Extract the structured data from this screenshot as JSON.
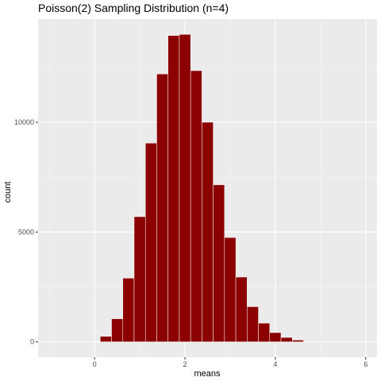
{
  "chart_data": {
    "type": "bar",
    "title": "Poisson(2) Sampling Distribution (n=4)",
    "xlabel": "means",
    "ylabel": "count",
    "xlim": [
      -1.25,
      6.25
    ],
    "ylim": [
      -700,
      14700
    ],
    "x_ticks": [
      0,
      2,
      4,
      6
    ],
    "y_ticks": [
      0,
      5000,
      10000
    ],
    "grid": true,
    "bar_width": 0.25,
    "bins": [
      {
        "x": 0.25,
        "count": 250
      },
      {
        "x": 0.5,
        "count": 1050
      },
      {
        "x": 0.75,
        "count": 2900
      },
      {
        "x": 1.0,
        "count": 5700
      },
      {
        "x": 1.25,
        "count": 9050
      },
      {
        "x": 1.5,
        "count": 12200
      },
      {
        "x": 1.75,
        "count": 13950
      },
      {
        "x": 2.0,
        "count": 14000
      },
      {
        "x": 2.25,
        "count": 12350
      },
      {
        "x": 2.5,
        "count": 10000
      },
      {
        "x": 2.75,
        "count": 7150
      },
      {
        "x": 3.0,
        "count": 4750
      },
      {
        "x": 3.25,
        "count": 2950
      },
      {
        "x": 3.5,
        "count": 1600
      },
      {
        "x": 3.75,
        "count": 850
      },
      {
        "x": 4.0,
        "count": 420
      },
      {
        "x": 4.25,
        "count": 200
      },
      {
        "x": 4.5,
        "count": 80
      }
    ]
  },
  "colors": {
    "bar_fill": "#8b0000",
    "bar_outline": "#ffffff",
    "panel_background": "#ebebeb",
    "grid_major": "#ffffff",
    "grid_minor": "#f5f5f5"
  }
}
